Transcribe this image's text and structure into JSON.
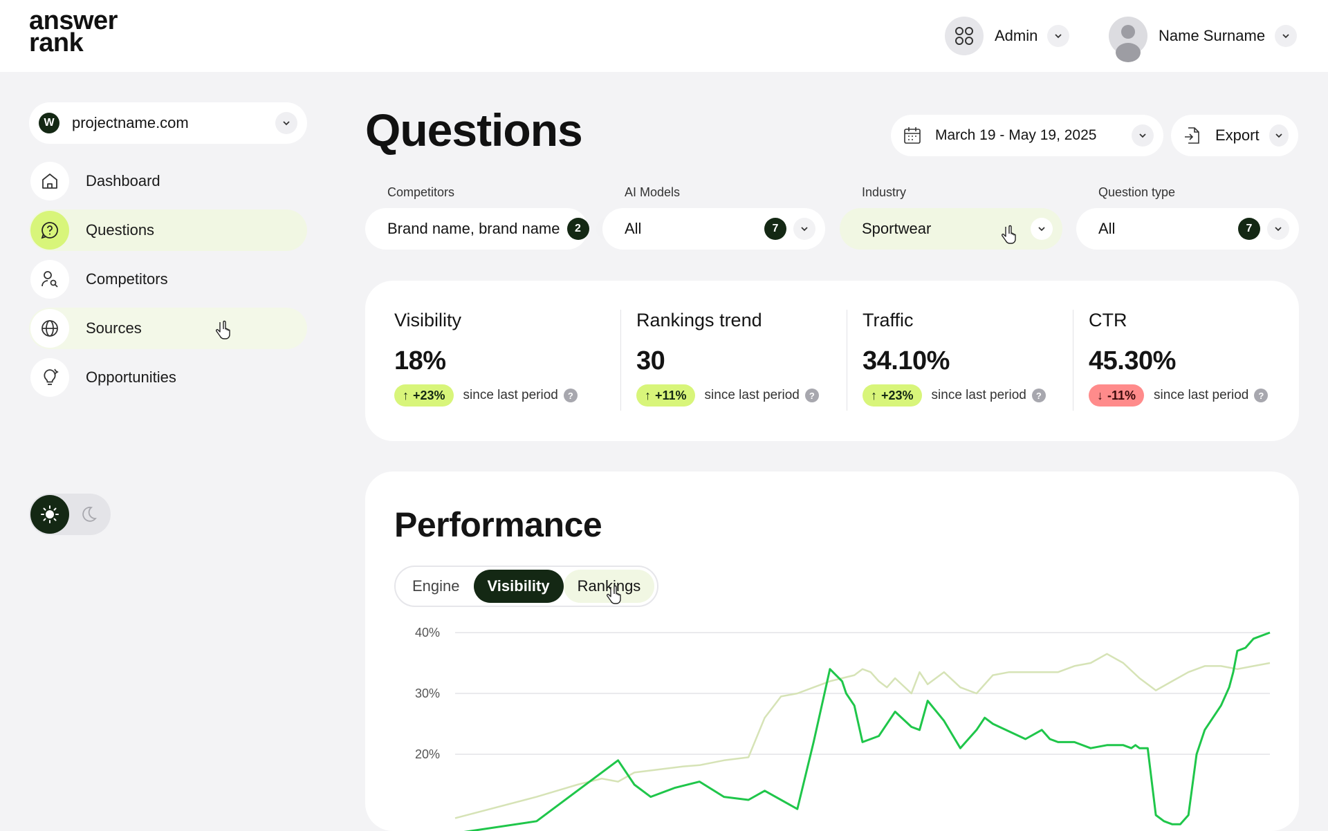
{
  "brand": {
    "logo_line1": "answer",
    "logo_line2": "rank"
  },
  "header": {
    "admin_label": "Admin",
    "user_name": "Name Surname"
  },
  "sidebar": {
    "project": {
      "badge": "W",
      "name": "projectname.com"
    },
    "items": [
      {
        "label": "Dashboard",
        "icon": "home-icon",
        "state": "default"
      },
      {
        "label": "Questions",
        "icon": "question-bubble-icon",
        "state": "active"
      },
      {
        "label": "Competitors",
        "icon": "user-search-icon",
        "state": "default"
      },
      {
        "label": "Sources",
        "icon": "globe-icon",
        "state": "hover"
      },
      {
        "label": "Opportunities",
        "icon": "lightbulb-icon",
        "state": "default"
      }
    ],
    "theme": {
      "selected": "light",
      "options": [
        "sun-icon",
        "moon-icon"
      ]
    }
  },
  "page": {
    "title": "Questions",
    "date_range": "March 19 - May 19, 2025",
    "export_label": "Export"
  },
  "filters": [
    {
      "label": "Competitors",
      "value": "Brand name, brand name",
      "count": "2"
    },
    {
      "label": "AI Models",
      "value": "All",
      "count": "7"
    },
    {
      "label": "Industry",
      "value": "Sportwear",
      "count": ""
    },
    {
      "label": "Question type",
      "value": "All",
      "count": "7"
    }
  ],
  "metrics": [
    {
      "title": "Visibility",
      "value": "18%",
      "delta": "+23%",
      "direction": "up",
      "since": "since last period"
    },
    {
      "title": "Rankings trend",
      "value": "30",
      "delta": "+11%",
      "direction": "up",
      "since": "since last period"
    },
    {
      "title": "Traffic",
      "value": "34.10%",
      "delta": "+23%",
      "direction": "up",
      "since": "since last period"
    },
    {
      "title": "CTR",
      "value": "45.30%",
      "delta": "-11%",
      "direction": "down",
      "since": "since last period"
    }
  ],
  "performance": {
    "title": "Performance",
    "tabs": [
      {
        "label": "Engine",
        "state": "default"
      },
      {
        "label": "Visibility",
        "state": "active"
      },
      {
        "label": "Rankings",
        "state": "hover"
      }
    ]
  },
  "colors": {
    "accent_lime": "#d8f57a",
    "dark_green": "#142814",
    "negative_red": "#ff8b8b",
    "series_primary": "#1fc64a",
    "series_secondary": "#d6e3b6"
  },
  "chart_data": {
    "type": "line",
    "yticks": [
      "40%",
      "30%",
      "20%"
    ],
    "ylim": [
      10,
      40
    ],
    "grid": true,
    "series": [
      {
        "color": "#1fc64a",
        "x": [
          0,
          0.1,
          0.15,
          0.2,
          0.22,
          0.24,
          0.27,
          0.3,
          0.33,
          0.36,
          0.38,
          0.42,
          0.44,
          0.46,
          0.475,
          0.48,
          0.49,
          0.5,
          0.52,
          0.54,
          0.56,
          0.57,
          0.58,
          0.6,
          0.62,
          0.64,
          0.65,
          0.66,
          0.7,
          0.72,
          0.73,
          0.74,
          0.76,
          0.78,
          0.8,
          0.82,
          0.83,
          0.835,
          0.84,
          0.85,
          0.86,
          0.87,
          0.88,
          0.89,
          0.9,
          0.91,
          0.92,
          0.94,
          0.95,
          0.955,
          0.96,
          0.97,
          0.98,
          1.0
        ],
        "y": [
          7,
          9,
          14,
          19,
          15,
          13,
          14.5,
          15.5,
          13,
          12.5,
          14,
          11,
          22,
          34,
          32,
          30,
          28,
          22,
          23,
          27,
          24.5,
          24,
          28.8,
          25.5,
          21,
          24,
          26,
          25,
          22.5,
          24,
          22.5,
          22,
          22,
          21,
          21.5,
          21.5,
          21,
          21.5,
          21,
          21,
          10,
          9,
          8.5,
          8.5,
          10,
          20,
          24,
          28,
          31,
          33.5,
          37,
          37.5,
          39,
          40
        ]
      },
      {
        "color": "#d6e3b6",
        "x": [
          0,
          0.1,
          0.15,
          0.18,
          0.2,
          0.22,
          0.25,
          0.28,
          0.3,
          0.33,
          0.36,
          0.38,
          0.4,
          0.42,
          0.44,
          0.46,
          0.475,
          0.49,
          0.5,
          0.51,
          0.52,
          0.53,
          0.54,
          0.56,
          0.57,
          0.58,
          0.6,
          0.62,
          0.64,
          0.66,
          0.68,
          0.7,
          0.72,
          0.74,
          0.76,
          0.78,
          0.8,
          0.82,
          0.84,
          0.86,
          0.88,
          0.9,
          0.92,
          0.94,
          0.96,
          0.98,
          1.0
        ],
        "y": [
          9.5,
          13,
          15,
          16,
          15.5,
          17,
          17.5,
          18,
          18.2,
          19,
          19.5,
          26,
          29.5,
          30,
          31,
          32,
          32.5,
          33,
          34,
          33.5,
          32,
          31,
          32.5,
          30,
          33.5,
          31.5,
          33.5,
          31,
          30,
          33,
          33.5,
          33.5,
          33.5,
          33.5,
          34.5,
          35,
          36.5,
          35,
          32.5,
          30.5,
          32,
          33.5,
          34.5,
          34.5,
          34,
          34.5,
          35
        ]
      }
    ]
  }
}
